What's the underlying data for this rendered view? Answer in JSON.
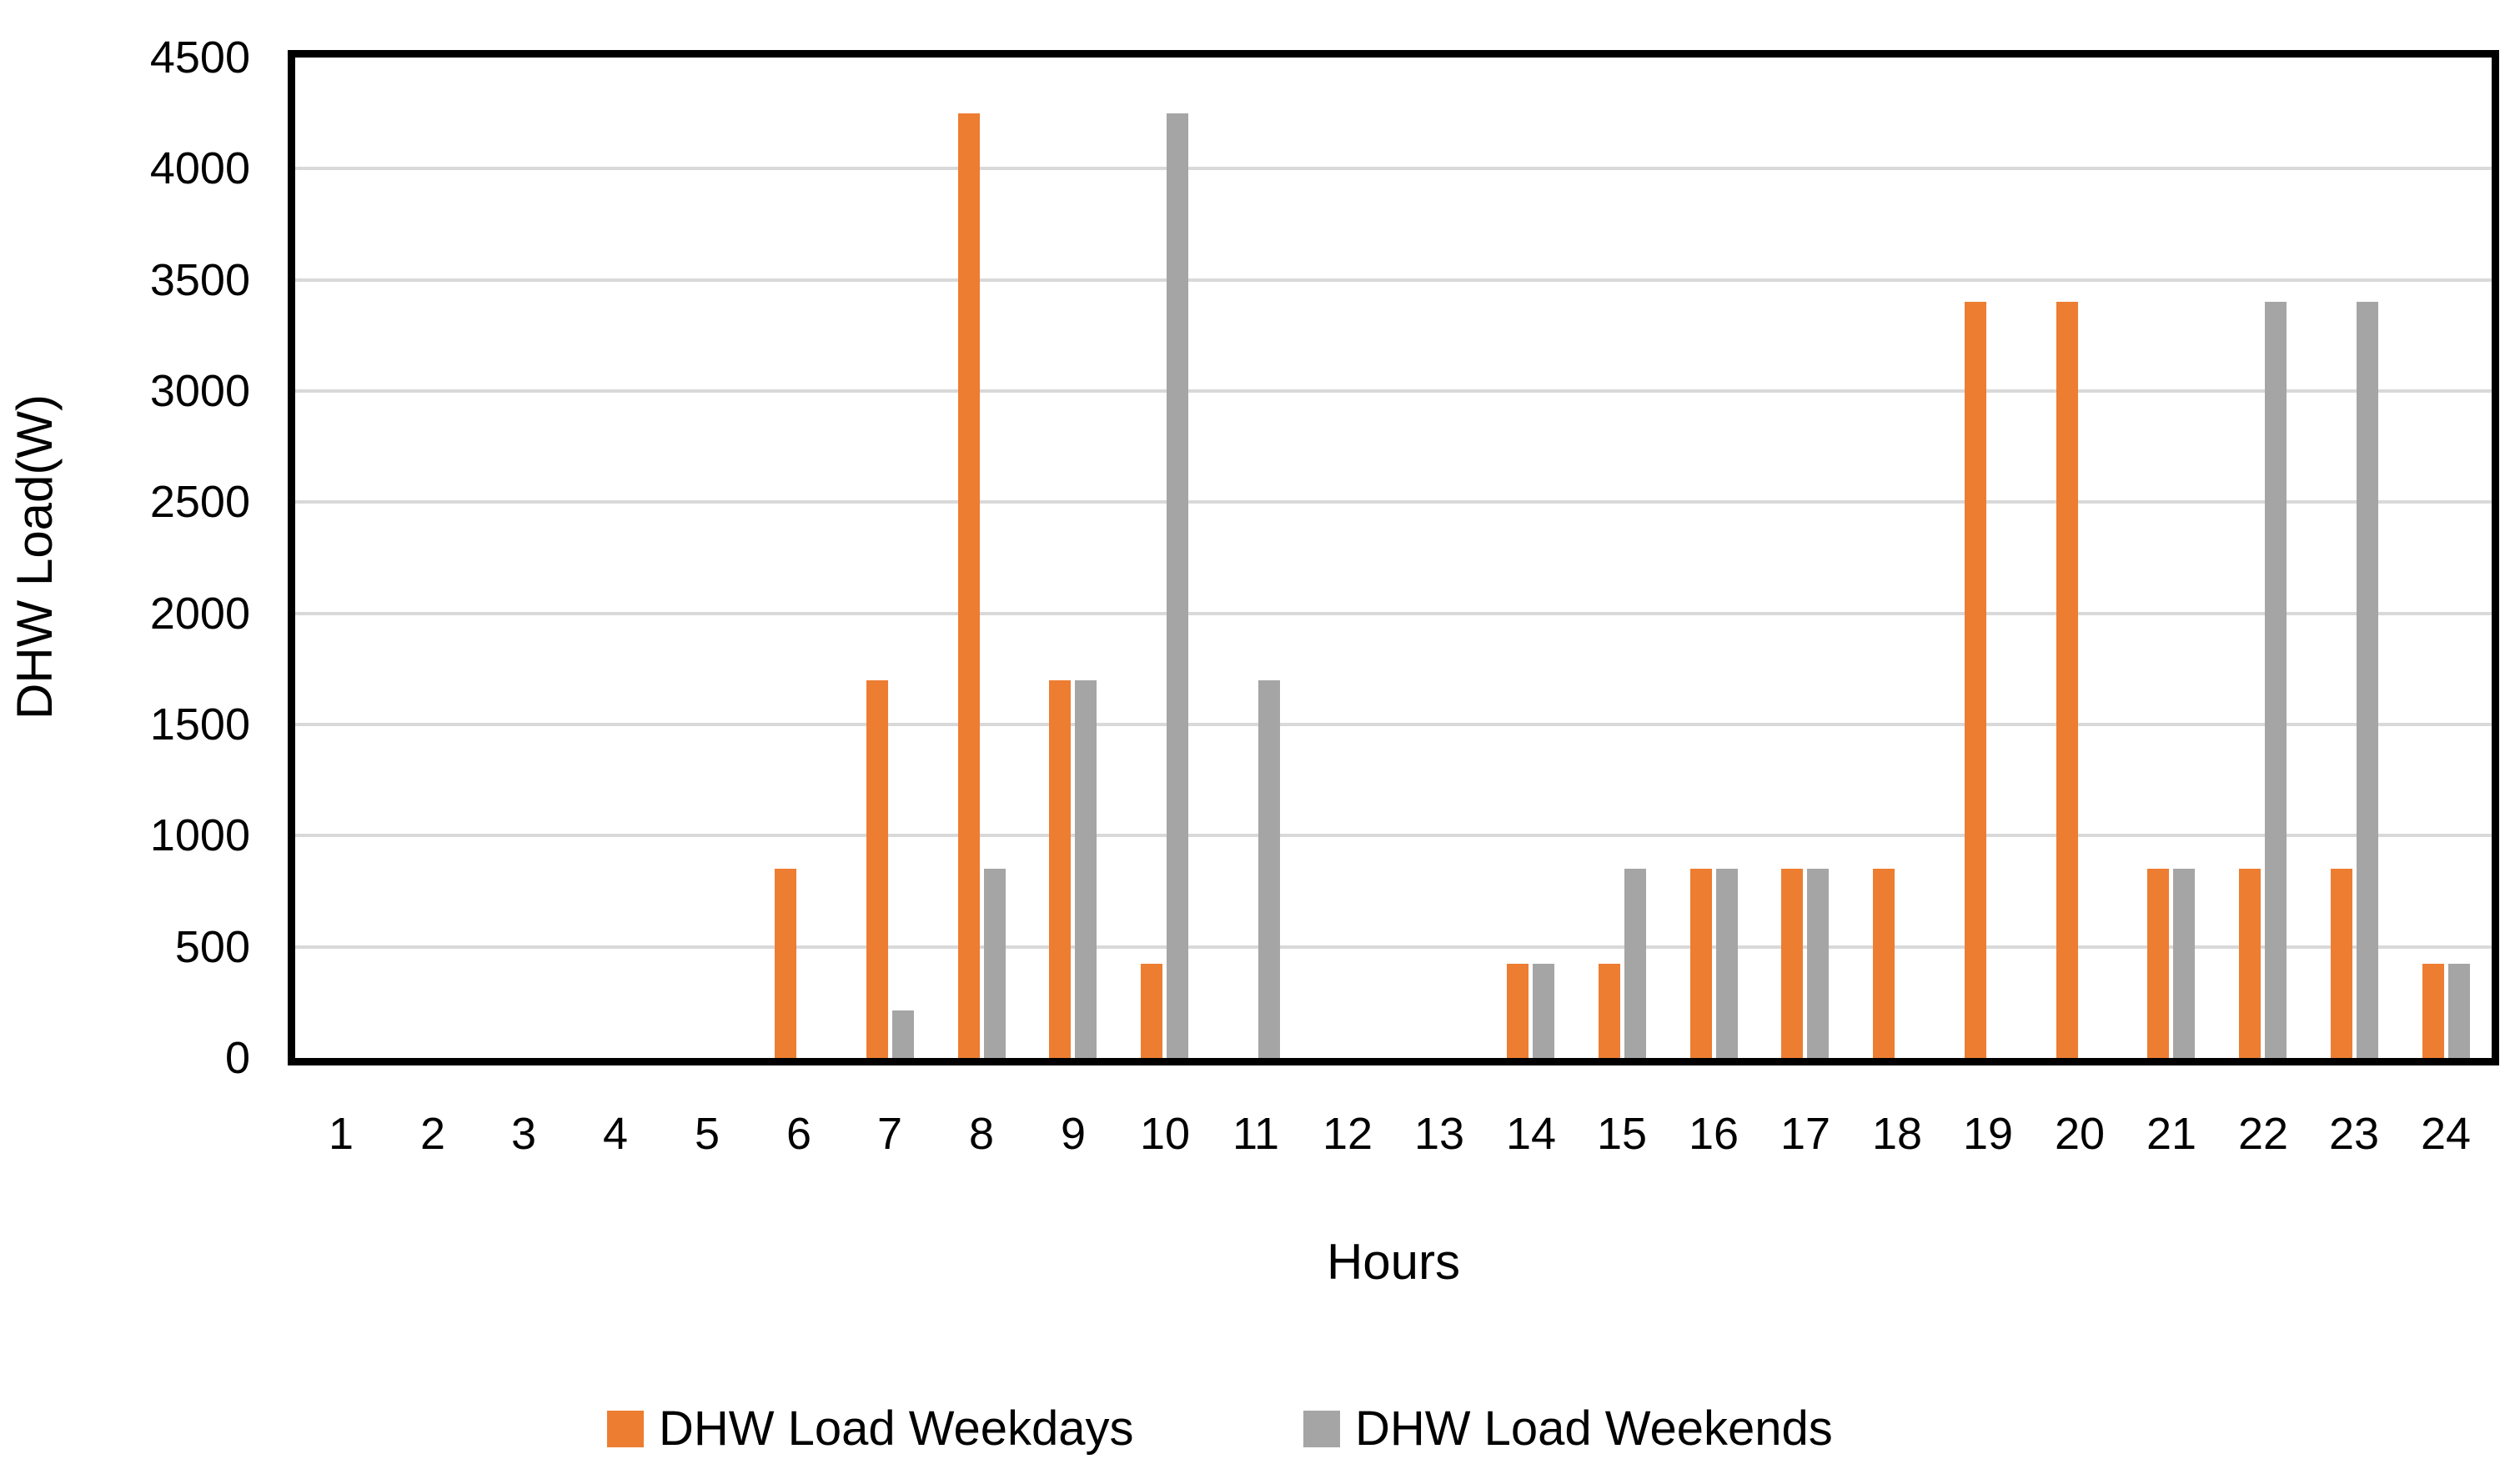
{
  "chart_data": {
    "type": "bar",
    "title": "",
    "xlabel": "Hours",
    "ylabel": "DHW Load(W)",
    "categories": [
      1,
      2,
      3,
      4,
      5,
      6,
      7,
      8,
      9,
      10,
      11,
      12,
      13,
      14,
      15,
      16,
      17,
      18,
      19,
      20,
      21,
      22,
      23,
      24
    ],
    "series": [
      {
        "name": "DHW Load Weekdays",
        "color": "#ED7D31",
        "values": [
          0,
          0,
          0,
          0,
          0,
          850,
          1700,
          4250,
          1700,
          425,
          0,
          0,
          0,
          425,
          425,
          850,
          850,
          850,
          3400,
          3400,
          850,
          850,
          850,
          425
        ]
      },
      {
        "name": "DHW Load Weekends",
        "color": "#A5A5A5",
        "values": [
          0,
          0,
          0,
          0,
          0,
          0,
          212.5,
          850,
          1700,
          4250,
          1700,
          0,
          0,
          425,
          850,
          850,
          850,
          0,
          0,
          0,
          850,
          3400,
          3400,
          425
        ]
      }
    ],
    "ylim": [
      0,
      4500
    ],
    "y_ticks": [
      0,
      500,
      1000,
      1500,
      2000,
      2500,
      3000,
      3500,
      4000,
      4500
    ],
    "grid": "horizontal",
    "gridline_color": "#D9D9D9",
    "axis_color": "#000000",
    "text_color": "#000000",
    "background_color": "#FFFFFF",
    "legend_position": "bottom"
  }
}
